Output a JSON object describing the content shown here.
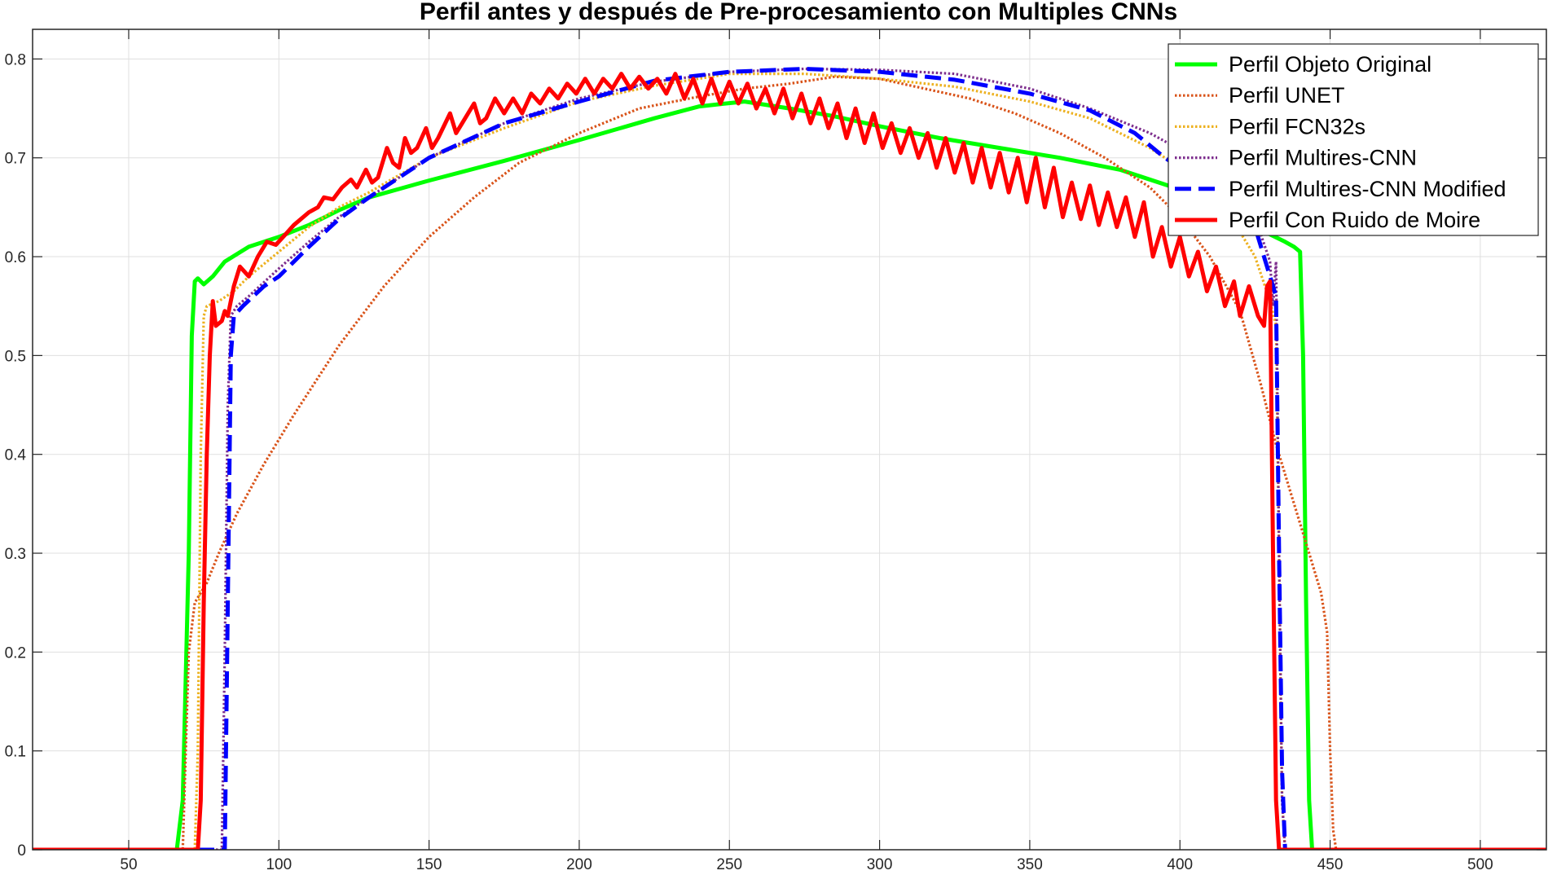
{
  "chart_data": {
    "type": "line",
    "title": "Perfil antes y después de Pre-procesamiento con Multiples CNNs",
    "xlabel": "",
    "ylabel": "",
    "xlim": [
      18,
      522
    ],
    "ylim": [
      0,
      0.83
    ],
    "x_ticks": [
      50,
      100,
      150,
      200,
      250,
      300,
      350,
      400,
      450,
      500
    ],
    "y_ticks": [
      0,
      0.1,
      0.2,
      0.3,
      0.4,
      0.5,
      0.6,
      0.7,
      0.8
    ],
    "grid": true,
    "legend_position": "top-right",
    "series": [
      {
        "name": "Perfil Objeto Original",
        "color": "#00ff00",
        "style": "solid",
        "points": [
          [
            18,
            0
          ],
          [
            66,
            0
          ],
          [
            68,
            0.05
          ],
          [
            70,
            0.3
          ],
          [
            71,
            0.52
          ],
          [
            72,
            0.575
          ],
          [
            73,
            0.578
          ],
          [
            75,
            0.572
          ],
          [
            78,
            0.58
          ],
          [
            82,
            0.595
          ],
          [
            90,
            0.61
          ],
          [
            100,
            0.62
          ],
          [
            110,
            0.632
          ],
          [
            120,
            0.647
          ],
          [
            130,
            0.66
          ],
          [
            150,
            0.677
          ],
          [
            175,
            0.697
          ],
          [
            200,
            0.718
          ],
          [
            225,
            0.74
          ],
          [
            240,
            0.752
          ],
          [
            255,
            0.757
          ],
          [
            270,
            0.75
          ],
          [
            285,
            0.742
          ],
          [
            300,
            0.732
          ],
          [
            320,
            0.72
          ],
          [
            340,
            0.71
          ],
          [
            360,
            0.7
          ],
          [
            380,
            0.688
          ],
          [
            400,
            0.668
          ],
          [
            415,
            0.648
          ],
          [
            425,
            0.63
          ],
          [
            435,
            0.615
          ],
          [
            438,
            0.61
          ],
          [
            440,
            0.605
          ],
          [
            441,
            0.5
          ],
          [
            442,
            0.25
          ],
          [
            443,
            0.05
          ],
          [
            444,
            0
          ],
          [
            522,
            0
          ]
        ]
      },
      {
        "name": "Perfil UNET",
        "color": "#d95319",
        "style": "dotted",
        "points": [
          [
            18,
            0
          ],
          [
            68,
            0
          ],
          [
            69,
            0.1
          ],
          [
            70,
            0.2
          ],
          [
            72,
            0.25
          ],
          [
            76,
            0.27
          ],
          [
            80,
            0.3
          ],
          [
            86,
            0.34
          ],
          [
            95,
            0.39
          ],
          [
            105,
            0.44
          ],
          [
            120,
            0.51
          ],
          [
            135,
            0.57
          ],
          [
            150,
            0.62
          ],
          [
            165,
            0.66
          ],
          [
            180,
            0.695
          ],
          [
            200,
            0.725
          ],
          [
            220,
            0.75
          ],
          [
            240,
            0.762
          ],
          [
            255,
            0.77
          ],
          [
            270,
            0.775
          ],
          [
            285,
            0.782
          ],
          [
            300,
            0.78
          ],
          [
            315,
            0.77
          ],
          [
            330,
            0.76
          ],
          [
            345,
            0.745
          ],
          [
            360,
            0.725
          ],
          [
            375,
            0.7
          ],
          [
            390,
            0.67
          ],
          [
            400,
            0.64
          ],
          [
            410,
            0.6
          ],
          [
            420,
            0.545
          ],
          [
            427,
            0.47
          ],
          [
            432,
            0.41
          ],
          [
            437,
            0.36
          ],
          [
            443,
            0.3
          ],
          [
            447,
            0.26
          ],
          [
            449,
            0.22
          ],
          [
            450,
            0.1
          ],
          [
            451,
            0.02
          ],
          [
            452,
            0
          ],
          [
            522,
            0
          ]
        ]
      },
      {
        "name": "Perfil FCN32s",
        "color": "#edb120",
        "style": "dotted",
        "points": [
          [
            18,
            0
          ],
          [
            72,
            0
          ],
          [
            73,
            0.1
          ],
          [
            74,
            0.4
          ],
          [
            75,
            0.54
          ],
          [
            76,
            0.55
          ],
          [
            80,
            0.555
          ],
          [
            85,
            0.565
          ],
          [
            90,
            0.58
          ],
          [
            100,
            0.605
          ],
          [
            110,
            0.63
          ],
          [
            120,
            0.65
          ],
          [
            130,
            0.665
          ],
          [
            150,
            0.7
          ],
          [
            175,
            0.73
          ],
          [
            200,
            0.757
          ],
          [
            225,
            0.773
          ],
          [
            250,
            0.785
          ],
          [
            275,
            0.785
          ],
          [
            300,
            0.78
          ],
          [
            325,
            0.772
          ],
          [
            350,
            0.757
          ],
          [
            370,
            0.74
          ],
          [
            390,
            0.71
          ],
          [
            405,
            0.68
          ],
          [
            415,
            0.65
          ],
          [
            425,
            0.6
          ],
          [
            430,
            0.555
          ],
          [
            432,
            0.53
          ],
          [
            433,
            0.3
          ],
          [
            434,
            0.05
          ],
          [
            435,
            0
          ],
          [
            522,
            0
          ]
        ]
      },
      {
        "name": "Perfil Multires-CNN",
        "color": "#7e2f8e",
        "style": "dotted",
        "points": [
          [
            18,
            0
          ],
          [
            81,
            0
          ],
          [
            82,
            0.2
          ],
          [
            83,
            0.45
          ],
          [
            84,
            0.54
          ],
          [
            86,
            0.55
          ],
          [
            90,
            0.56
          ],
          [
            100,
            0.588
          ],
          [
            110,
            0.615
          ],
          [
            120,
            0.64
          ],
          [
            130,
            0.66
          ],
          [
            150,
            0.7
          ],
          [
            175,
            0.735
          ],
          [
            200,
            0.76
          ],
          [
            225,
            0.777
          ],
          [
            250,
            0.787
          ],
          [
            275,
            0.79
          ],
          [
            300,
            0.789
          ],
          [
            325,
            0.785
          ],
          [
            350,
            0.77
          ],
          [
            370,
            0.75
          ],
          [
            390,
            0.725
          ],
          [
            405,
            0.7
          ],
          [
            415,
            0.68
          ],
          [
            425,
            0.64
          ],
          [
            430,
            0.595
          ],
          [
            431,
            0.55
          ],
          [
            432,
            0.595
          ],
          [
            433,
            0.3
          ],
          [
            434,
            0.05
          ],
          [
            435,
            0
          ],
          [
            522,
            0
          ]
        ]
      },
      {
        "name": "Perfil Multires-CNN Modified",
        "color": "#0000ff",
        "style": "dashed",
        "points": [
          [
            18,
            0
          ],
          [
            82,
            0
          ],
          [
            83,
            0.25
          ],
          [
            84,
            0.5
          ],
          [
            85,
            0.54
          ],
          [
            88,
            0.55
          ],
          [
            95,
            0.57
          ],
          [
            100,
            0.58
          ],
          [
            110,
            0.61
          ],
          [
            120,
            0.638
          ],
          [
            130,
            0.66
          ],
          [
            150,
            0.7
          ],
          [
            175,
            0.735
          ],
          [
            200,
            0.757
          ],
          [
            225,
            0.778
          ],
          [
            250,
            0.787
          ],
          [
            275,
            0.79
          ],
          [
            300,
            0.787
          ],
          [
            325,
            0.779
          ],
          [
            350,
            0.765
          ],
          [
            370,
            0.748
          ],
          [
            385,
            0.725
          ],
          [
            395,
            0.7
          ],
          [
            405,
            0.68
          ],
          [
            415,
            0.66
          ],
          [
            425,
            0.63
          ],
          [
            430,
            0.58
          ],
          [
            432,
            0.56
          ],
          [
            433,
            0.3
          ],
          [
            434,
            0.08
          ],
          [
            435,
            0
          ],
          [
            522,
            0
          ]
        ]
      },
      {
        "name": "Perfil Con Ruido de Moire",
        "color": "#ff0000",
        "style": "solid",
        "points": [
          [
            18,
            0
          ],
          [
            73,
            0
          ],
          [
            74,
            0.05
          ],
          [
            75,
            0.25
          ],
          [
            76,
            0.4
          ],
          [
            77,
            0.5
          ],
          [
            78,
            0.555
          ],
          [
            79,
            0.53
          ],
          [
            81,
            0.535
          ],
          [
            82,
            0.545
          ],
          [
            83,
            0.54
          ],
          [
            85,
            0.57
          ],
          [
            87,
            0.59
          ],
          [
            90,
            0.58
          ],
          [
            93,
            0.6
          ],
          [
            96,
            0.615
          ],
          [
            99,
            0.612
          ],
          [
            102,
            0.622
          ],
          [
            105,
            0.632
          ],
          [
            110,
            0.645
          ],
          [
            113,
            0.65
          ],
          [
            115,
            0.66
          ],
          [
            118,
            0.658
          ],
          [
            121,
            0.67
          ],
          [
            124,
            0.678
          ],
          [
            126,
            0.67
          ],
          [
            129,
            0.688
          ],
          [
            131,
            0.675
          ],
          [
            133,
            0.68
          ],
          [
            136,
            0.71
          ],
          [
            138,
            0.695
          ],
          [
            140,
            0.69
          ],
          [
            142,
            0.72
          ],
          [
            144,
            0.705
          ],
          [
            146,
            0.71
          ],
          [
            149,
            0.73
          ],
          [
            151,
            0.71
          ],
          [
            153,
            0.72
          ],
          [
            157,
            0.745
          ],
          [
            159,
            0.725
          ],
          [
            161,
            0.735
          ],
          [
            165,
            0.755
          ],
          [
            167,
            0.735
          ],
          [
            169,
            0.74
          ],
          [
            172,
            0.76
          ],
          [
            175,
            0.745
          ],
          [
            178,
            0.76
          ],
          [
            181,
            0.745
          ],
          [
            184,
            0.765
          ],
          [
            187,
            0.755
          ],
          [
            190,
            0.77
          ],
          [
            193,
            0.76
          ],
          [
            196,
            0.775
          ],
          [
            199,
            0.765
          ],
          [
            202,
            0.78
          ],
          [
            205,
            0.765
          ],
          [
            208,
            0.78
          ],
          [
            211,
            0.77
          ],
          [
            214,
            0.785
          ],
          [
            217,
            0.77
          ],
          [
            220,
            0.782
          ],
          [
            223,
            0.77
          ],
          [
            226,
            0.78
          ],
          [
            229,
            0.765
          ],
          [
            232,
            0.785
          ],
          [
            235,
            0.76
          ],
          [
            238,
            0.78
          ],
          [
            241,
            0.755
          ],
          [
            244,
            0.78
          ],
          [
            247,
            0.755
          ],
          [
            250,
            0.777
          ],
          [
            253,
            0.755
          ],
          [
            256,
            0.775
          ],
          [
            259,
            0.75
          ],
          [
            262,
            0.77
          ],
          [
            265,
            0.745
          ],
          [
            268,
            0.77
          ],
          [
            271,
            0.74
          ],
          [
            274,
            0.765
          ],
          [
            277,
            0.735
          ],
          [
            280,
            0.76
          ],
          [
            283,
            0.73
          ],
          [
            286,
            0.755
          ],
          [
            289,
            0.72
          ],
          [
            292,
            0.75
          ],
          [
            295,
            0.715
          ],
          [
            298,
            0.745
          ],
          [
            301,
            0.71
          ],
          [
            304,
            0.735
          ],
          [
            307,
            0.705
          ],
          [
            310,
            0.73
          ],
          [
            313,
            0.7
          ],
          [
            316,
            0.725
          ],
          [
            319,
            0.69
          ],
          [
            322,
            0.72
          ],
          [
            325,
            0.685
          ],
          [
            328,
            0.715
          ],
          [
            331,
            0.675
          ],
          [
            334,
            0.71
          ],
          [
            337,
            0.67
          ],
          [
            340,
            0.705
          ],
          [
            343,
            0.665
          ],
          [
            346,
            0.7
          ],
          [
            349,
            0.655
          ],
          [
            352,
            0.7
          ],
          [
            355,
            0.65
          ],
          [
            358,
            0.69
          ],
          [
            361,
            0.64
          ],
          [
            364,
            0.675
          ],
          [
            367,
            0.638
          ],
          [
            370,
            0.672
          ],
          [
            373,
            0.632
          ],
          [
            376,
            0.665
          ],
          [
            379,
            0.63
          ],
          [
            382,
            0.66
          ],
          [
            385,
            0.62
          ],
          [
            388,
            0.655
          ],
          [
            391,
            0.6
          ],
          [
            394,
            0.63
          ],
          [
            397,
            0.59
          ],
          [
            400,
            0.62
          ],
          [
            403,
            0.58
          ],
          [
            406,
            0.605
          ],
          [
            409,
            0.565
          ],
          [
            412,
            0.59
          ],
          [
            415,
            0.55
          ],
          [
            418,
            0.575
          ],
          [
            420,
            0.54
          ],
          [
            423,
            0.57
          ],
          [
            426,
            0.54
          ],
          [
            428,
            0.53
          ],
          [
            429,
            0.57
          ],
          [
            430,
            0.575
          ],
          [
            431,
            0.3
          ],
          [
            432,
            0.05
          ],
          [
            433,
            0
          ],
          [
            522,
            0
          ]
        ]
      }
    ]
  }
}
